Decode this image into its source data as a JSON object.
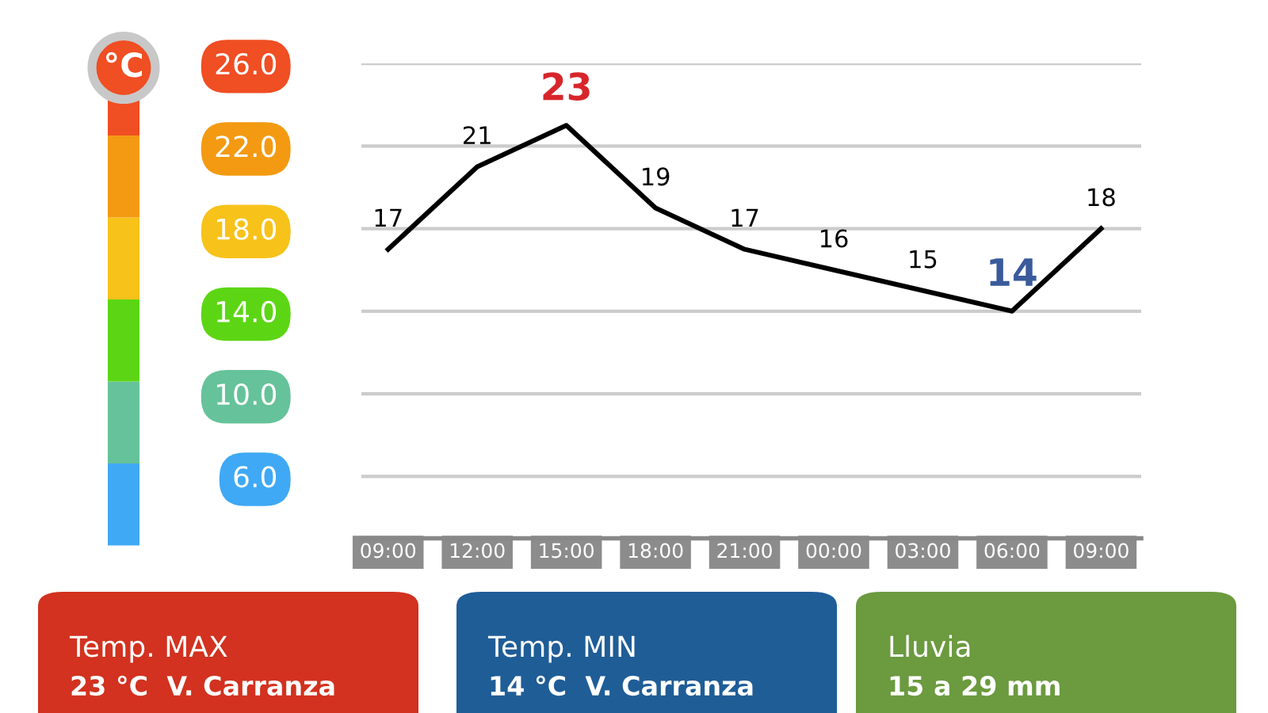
{
  "chart_data": {
    "type": "line",
    "categories": [
      "09:00",
      "12:00",
      "15:00",
      "18:00",
      "21:00",
      "00:00",
      "03:00",
      "06:00",
      "09:00"
    ],
    "series": [
      {
        "color": "#000000",
        "values": [
          17,
          21,
          23,
          19,
          17,
          16,
          15,
          14,
          18
        ]
      }
    ],
    "ylim": [
      3,
      26
    ],
    "yticks": [
      {
        "value": 6,
        "label": "6.0"
      },
      {
        "value": 10,
        "label": "10.0"
      },
      {
        "value": 14,
        "label": "14.0"
      },
      {
        "value": 18,
        "label": "18.0"
      },
      {
        "value": 22,
        "label": "22.0"
      },
      {
        "value": 26,
        "label": "26.0"
      }
    ],
    "grid": "y",
    "data_labels": true,
    "marker": "none",
    "line_style": "solid",
    "annotations": [
      "°C",
      "Temp. MAX",
      "23 °C  V. Carranza",
      "Temp. MIN",
      "14 °C  V. Carranza",
      "Lluvia",
      "15 a 29 mm"
    ]
  }
}
